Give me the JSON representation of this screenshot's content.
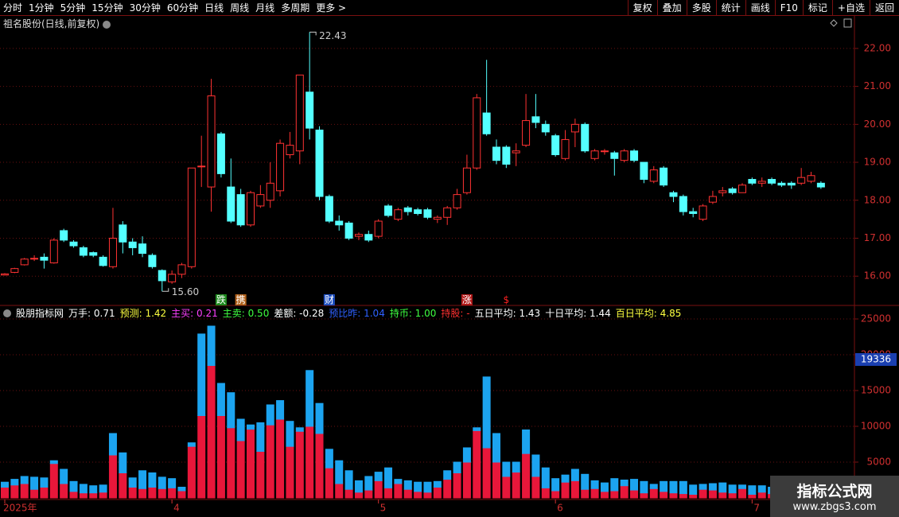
{
  "toolbar": {
    "left": [
      "分时",
      "1分钟",
      "5分钟",
      "15分钟",
      "30分钟",
      "60分钟",
      "日线",
      "周线",
      "月线",
      "多周期",
      "更多 >"
    ],
    "right": [
      "复权",
      "叠加",
      "多股",
      "统计",
      "画线",
      "F10",
      "标记",
      "+自选",
      "返回"
    ]
  },
  "watermark": {
    "title": "指标公式网",
    "url": "www.zbgs3.com"
  },
  "chart_data": [
    {
      "type": "candlestick",
      "title": "祖名股份(日线,前复权)",
      "up_color": "#ff3232",
      "down_color": "#54ffff",
      "ylim": [
        15.25,
        22.48
      ],
      "yticks": [
        {
          "value": 16,
          "label": "16.00"
        },
        {
          "value": 17,
          "label": "17.00"
        },
        {
          "value": 18,
          "label": "18.00"
        },
        {
          "value": 19,
          "label": "19.00"
        },
        {
          "value": 20,
          "label": "20.00"
        },
        {
          "value": 21,
          "label": "21.00"
        },
        {
          "value": 22,
          "label": "22.00"
        }
      ],
      "grid": true,
      "max_label": 22.43,
      "min_label": {
        "value": 15.6,
        "label": "15.60"
      },
      "events": [
        {
          "index": 22,
          "label": "跌",
          "color": "#1f8a1f"
        },
        {
          "index": 24,
          "label": "携",
          "color": "#b0601a"
        },
        {
          "index": 33,
          "label": "财",
          "color": "#2050c0"
        },
        {
          "index": 47,
          "label": "涨",
          "color": "#b01818"
        },
        {
          "index": 51,
          "label": "$",
          "color": "#ff2020"
        }
      ],
      "open": [
        16.03,
        16.1,
        16.3,
        16.45,
        16.5,
        16.35,
        17.2,
        16.9,
        16.75,
        16.62,
        16.5,
        16.25,
        17.35,
        16.9,
        16.85,
        16.55,
        16.15,
        15.85,
        16.05,
        16.25,
        18.9,
        18.35,
        19.75,
        18.35,
        18.15,
        17.35,
        17.85,
        18.0,
        18.25,
        19.2,
        19.3,
        20.85,
        19.85,
        18.1,
        17.45,
        17.4,
        17.05,
        17.1,
        17.05,
        17.85,
        17.5,
        17.8,
        17.75,
        17.75,
        17.5,
        17.55,
        17.8,
        18.2,
        18.85,
        20.3,
        19.4,
        19.4,
        19.25,
        19.45,
        20.2,
        20.0,
        19.7,
        19.1,
        19.8,
        20.0,
        19.1,
        19.3,
        19.25,
        19.05,
        19.3,
        19.0,
        18.5,
        18.85,
        18.2,
        18.1,
        17.7,
        17.5,
        17.95,
        18.2,
        18.3,
        18.2,
        18.55,
        18.45,
        18.55,
        18.45,
        18.45,
        18.45,
        18.5,
        18.45
      ],
      "high": [
        16.08,
        16.22,
        16.48,
        16.55,
        16.6,
        17.0,
        17.25,
        16.95,
        16.8,
        16.65,
        16.55,
        17.8,
        17.45,
        17.0,
        17.05,
        16.6,
        16.18,
        16.15,
        16.35,
        18.85,
        19.7,
        21.2,
        19.8,
        19.1,
        18.3,
        18.25,
        18.4,
        19.0,
        19.6,
        19.8,
        21.3,
        22.43,
        19.95,
        18.15,
        17.6,
        17.45,
        17.15,
        17.2,
        17.5,
        17.9,
        17.8,
        17.85,
        17.8,
        17.8,
        17.6,
        17.85,
        18.3,
        19.2,
        20.8,
        21.7,
        19.6,
        19.45,
        19.5,
        20.8,
        20.8,
        20.1,
        19.75,
        19.85,
        20.15,
        20.05,
        19.35,
        19.35,
        19.3,
        19.35,
        19.35,
        19.0,
        18.9,
        18.9,
        18.25,
        18.15,
        17.8,
        17.9,
        18.25,
        18.35,
        18.35,
        18.45,
        18.6,
        18.6,
        18.6,
        18.5,
        18.5,
        18.85,
        18.75,
        18.5
      ],
      "low": [
        16.02,
        16.08,
        16.28,
        16.4,
        16.2,
        16.33,
        16.9,
        16.75,
        16.5,
        16.5,
        16.25,
        16.2,
        16.6,
        16.55,
        16.5,
        16.2,
        15.6,
        15.8,
        15.95,
        16.2,
        18.35,
        17.7,
        18.6,
        17.4,
        17.3,
        17.3,
        17.8,
        17.8,
        18.1,
        19.1,
        18.95,
        19.6,
        18.0,
        17.4,
        17.2,
        16.95,
        16.95,
        16.9,
        17.0,
        17.55,
        17.45,
        17.6,
        17.6,
        17.5,
        17.4,
        17.35,
        17.75,
        18.15,
        18.8,
        19.7,
        18.95,
        18.85,
        18.9,
        19.4,
        19.9,
        19.7,
        19.15,
        19.05,
        19.4,
        19.25,
        19.05,
        19.2,
        18.65,
        19.0,
        19.0,
        18.45,
        18.45,
        18.35,
        17.95,
        17.6,
        17.55,
        17.45,
        17.9,
        18.1,
        18.15,
        18.2,
        18.4,
        18.35,
        18.4,
        18.35,
        18.3,
        18.4,
        18.45,
        18.3
      ],
      "close": [
        16.06,
        16.2,
        16.45,
        16.47,
        16.42,
        16.95,
        16.95,
        16.8,
        16.55,
        16.55,
        16.28,
        17.0,
        16.9,
        16.75,
        16.6,
        16.25,
        15.88,
        16.05,
        16.3,
        18.85,
        18.9,
        20.75,
        18.7,
        17.45,
        17.35,
        18.2,
        18.15,
        18.45,
        19.5,
        19.45,
        21.3,
        19.9,
        18.1,
        17.45,
        17.35,
        17.0,
        17.1,
        16.95,
        17.45,
        17.6,
        17.75,
        17.7,
        17.65,
        17.55,
        17.55,
        17.8,
        18.15,
        18.85,
        20.7,
        19.75,
        19.05,
        18.95,
        19.3,
        20.1,
        20.05,
        19.8,
        19.2,
        19.6,
        20.0,
        19.3,
        19.3,
        19.3,
        19.1,
        19.3,
        19.05,
        18.55,
        18.8,
        18.4,
        18.1,
        17.7,
        17.65,
        17.85,
        18.1,
        18.25,
        18.2,
        18.4,
        18.45,
        18.5,
        18.45,
        18.4,
        18.4,
        18.6,
        18.65,
        18.35
      ]
    },
    {
      "type": "stacked_bar",
      "indicator_name": "股朋指标网",
      "indicator_items": [
        {
          "text": "万手: 0.71",
          "color": "#ffffff"
        },
        {
          "text": "预测: 1.42",
          "color": "#ffff40"
        },
        {
          "text": "主买: 0.21",
          "color": "#ff40ff"
        },
        {
          "text": "主卖: 0.50",
          "color": "#40ff40"
        },
        {
          "text": "差额: -0.28",
          "color": "#ffffff"
        },
        {
          "text": "预比昨: 1.04",
          "color": "#3060ff"
        },
        {
          "text": "持币: 1.00",
          "color": "#40ff40"
        },
        {
          "text": "持股: -",
          "color": "#ff3030"
        },
        {
          "text": "五日平均: 1.43",
          "color": "#ffffff"
        },
        {
          "text": "十日平均: 1.44",
          "color": "#ffffff"
        },
        {
          "text": "百日平均: 4.85",
          "color": "#ffff40"
        }
      ],
      "categories": [
        "2025年",
        null,
        null,
        null,
        null,
        null,
        null,
        null,
        null,
        null,
        null,
        null,
        null,
        null,
        null,
        null,
        null,
        "4",
        null,
        null,
        null,
        null,
        null,
        null,
        null,
        null,
        null,
        null,
        null,
        null,
        null,
        null,
        null,
        null,
        null,
        null,
        null,
        null,
        "5",
        null,
        null,
        null,
        null,
        null,
        null,
        null,
        null,
        null,
        null,
        null,
        null,
        null,
        null,
        null,
        null,
        null,
        "6",
        null,
        null,
        null,
        null,
        null,
        null,
        null,
        null,
        null,
        null,
        null,
        null,
        null,
        null,
        null,
        null,
        null,
        null,
        null,
        "7",
        null,
        null,
        null,
        null,
        null,
        null,
        null
      ],
      "ylim": [
        0,
        26444
      ],
      "yticks": [
        5000,
        10000,
        15000,
        20000,
        25000
      ],
      "grid": true,
      "marker": 19336,
      "series": [
        {
          "color": "#e8173a",
          "values": [
            1500,
            1800,
            2000,
            1200,
            1500,
            4800,
            2000,
            900,
            700,
            700,
            800,
            6000,
            3500,
            1500,
            1300,
            1500,
            1300,
            1400,
            1000,
            7200,
            11500,
            18500,
            11500,
            9800,
            8000,
            9600,
            6500,
            10200,
            11000,
            7200,
            9300,
            10000,
            9000,
            4200,
            2000,
            1200,
            800,
            1100,
            2400,
            1400,
            2000,
            1200,
            900,
            800,
            1500,
            2600,
            3500,
            5000,
            9400,
            7000,
            5000,
            3000,
            3600,
            6200,
            3000,
            1400,
            1000,
            2200,
            2400,
            1200,
            1300,
            900,
            1000,
            1700,
            1100,
            700,
            1300,
            900,
            700,
            600,
            500,
            1200,
            1100,
            800,
            700,
            1300,
            500,
            800,
            600,
            600,
            600,
            900,
            600,
            500
          ]
        },
        {
          "color": "#1ca4f0",
          "values": [
            700,
            800,
            1000,
            1700,
            1300,
            400,
            2000,
            1400,
            1200,
            1000,
            1000,
            3000,
            2800,
            1300,
            2500,
            2000,
            1600,
            1300,
            500,
            500,
            11400,
            5500,
            4500,
            4900,
            3000,
            600,
            4000,
            2800,
            2600,
            3500,
            500,
            7800,
            4200,
            2600,
            3200,
            2600,
            1600,
            1900,
            1200,
            2800,
            600,
            1200,
            1300,
            1400,
            800,
            1200,
            1500,
            2000,
            400,
            9900,
            4000,
            2000,
            1400,
            3300,
            3000,
            2800,
            1700,
            1000,
            1600,
            2100,
            1100,
            1200,
            1700,
            800,
            1500,
            1600,
            600,
            1400,
            1600,
            1700,
            1300,
            700,
            900,
            1300,
            1100,
            500,
            1200,
            900,
            900,
            900,
            800,
            700,
            800,
            800
          ]
        }
      ]
    }
  ]
}
